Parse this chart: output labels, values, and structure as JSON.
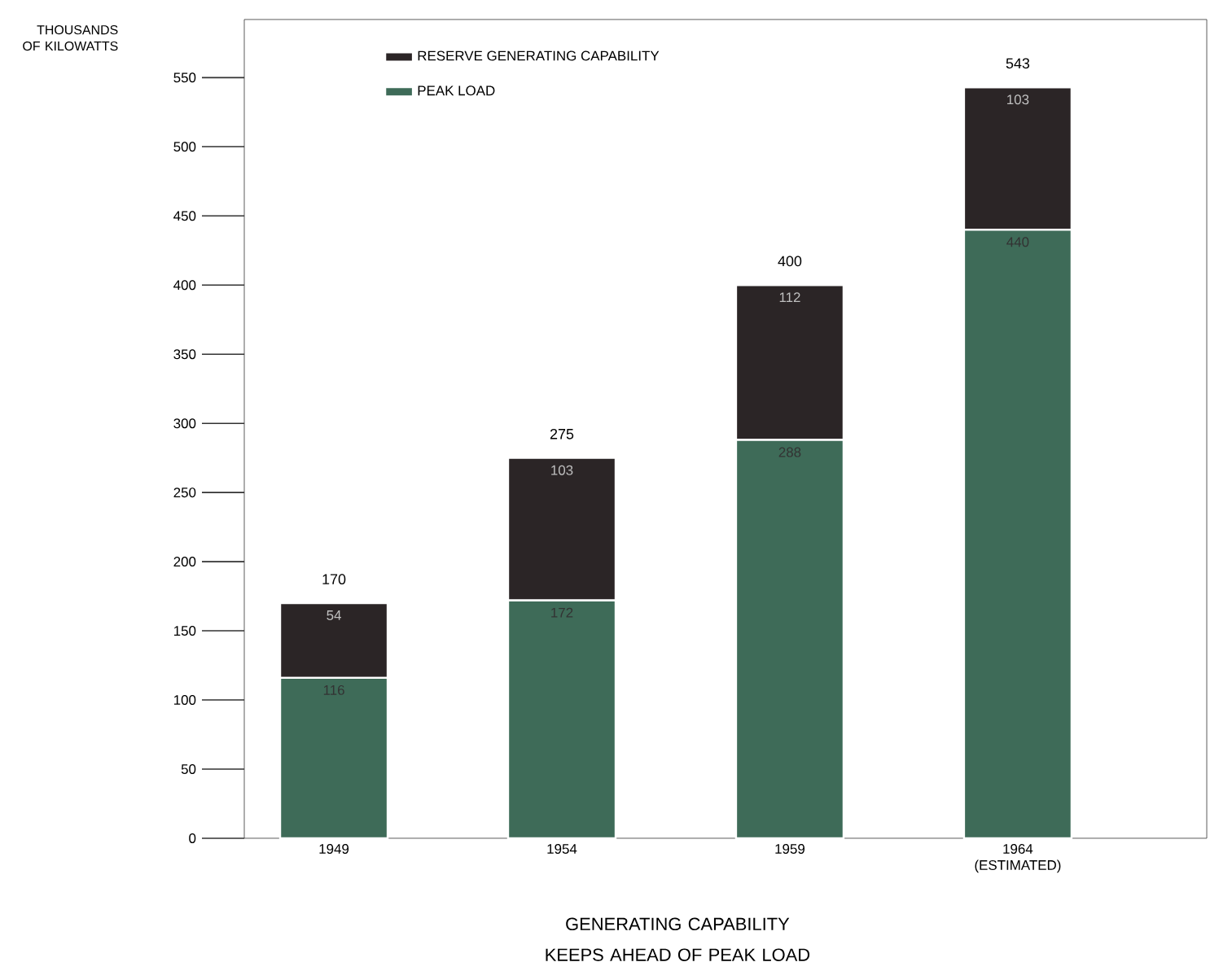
{
  "chart_data": {
    "type": "bar",
    "stacked": true,
    "title": "GENERATING CAPABILITY KEEPS AHEAD OF PEAK LOAD",
    "ylabel": "THOUSANDS OF KILOWATTS",
    "categories": [
      "1949",
      "1954",
      "1959",
      "1964 (ESTIMATED)"
    ],
    "series": [
      {
        "name": "PEAK LOAD",
        "color": "#3e6b58",
        "values": [
          116,
          172,
          288,
          440
        ],
        "value_labels": [
          "116",
          "172",
          "288",
          "440"
        ]
      },
      {
        "name": "RESERVE GENERATING CAPABILITY",
        "color": "#2b2526",
        "values": [
          54,
          103,
          112,
          103
        ],
        "value_labels": [
          "54",
          "103",
          "112",
          "103"
        ]
      }
    ],
    "totals": [
      "170",
      "275",
      "400",
      "543"
    ],
    "ylim": [
      0,
      592
    ],
    "yticks": [
      0,
      50,
      100,
      150,
      200,
      250,
      300,
      350,
      400,
      450,
      500,
      550
    ],
    "legend": "top left",
    "grid": false
  }
}
